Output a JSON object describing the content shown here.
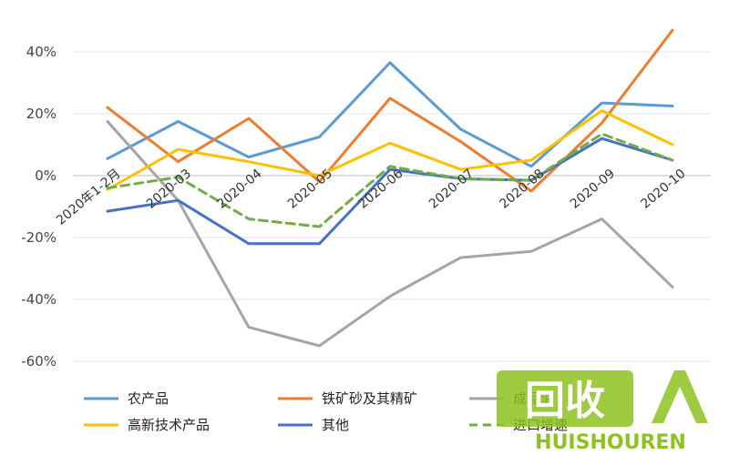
{
  "chart_data": {
    "type": "line",
    "categories": [
      "2020年1-2月",
      "2020-03",
      "2020-04",
      "2020-05",
      "2020-06",
      "2020-07",
      "2020-08",
      "2020-09",
      "2020-10"
    ],
    "ylim": [
      -60,
      40
    ],
    "yticks": [
      "40%",
      "20%",
      "0%",
      "-20%",
      "-40%",
      "-60%"
    ],
    "ytick_values": [
      40,
      20,
      0,
      -20,
      -40,
      -60
    ],
    "grid": true,
    "legend_position": "bottom",
    "series": [
      {
        "name": "农产品",
        "color": "#5b9bd5",
        "style": "solid",
        "values": [
          5.5,
          17.5,
          6,
          12.5,
          36.5,
          15,
          3,
          23.5,
          22.5
        ]
      },
      {
        "name": "铁矿砂及其精矿",
        "color": "#ed7d31",
        "style": "solid",
        "values": [
          22,
          4.5,
          18.5,
          -2,
          25,
          11,
          -5,
          17,
          47
        ]
      },
      {
        "name": "成品油",
        "color": "#a5a5a5",
        "style": "solid",
        "values": [
          17.5,
          -8,
          -49,
          -55,
          -39,
          -26.5,
          -24.5,
          -14,
          -36
        ]
      },
      {
        "name": "高新技术产品",
        "color": "#ffc000",
        "style": "solid",
        "values": [
          -4.5,
          8.5,
          4.5,
          0,
          10.5,
          2,
          5,
          21,
          10
        ]
      },
      {
        "name": "其他",
        "color": "#4472c4",
        "style": "solid",
        "values": [
          -11.5,
          -8,
          -22,
          -22,
          2,
          -1,
          -1.5,
          12,
          5
        ]
      },
      {
        "name": "进口增速",
        "color": "#70ad47",
        "style": "dashed",
        "values": [
          -4,
          -0.5,
          -14,
          -16.5,
          3,
          -1,
          -1.5,
          13.5,
          5
        ]
      }
    ]
  },
  "watermark": {
    "text_cn": "回收",
    "text_en": "HUISHOUREN"
  }
}
